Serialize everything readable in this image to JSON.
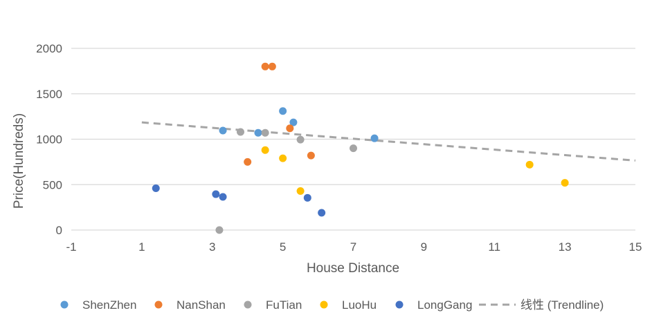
{
  "chart_data": {
    "type": "scatter",
    "title": "",
    "xlabel": "House Distance",
    "ylabel": "Price(Hundreds)",
    "xlim": [
      -1,
      15
    ],
    "ylim": [
      0,
      2000
    ],
    "xticks": [
      -1,
      1,
      3,
      5,
      7,
      9,
      11,
      13,
      15
    ],
    "yticks": [
      0,
      500,
      1000,
      1500,
      2000
    ],
    "grid": "horizontal",
    "legend_position": "bottom",
    "series": [
      {
        "name": "ShenZhen",
        "color": "#5b9bd5",
        "points": [
          [
            3.3,
            1095
          ],
          [
            4.3,
            1070
          ],
          [
            5.0,
            1310
          ],
          [
            5.3,
            1185
          ],
          [
            7.6,
            1010
          ]
        ]
      },
      {
        "name": "NanShan",
        "color": "#ed7d31",
        "points": [
          [
            4.5,
            1800
          ],
          [
            4.7,
            1800
          ],
          [
            4.0,
            750
          ],
          [
            5.2,
            1120
          ],
          [
            5.8,
            820
          ]
        ]
      },
      {
        "name": "FuTian",
        "color": "#a5a5a5",
        "points": [
          [
            3.8,
            1080
          ],
          [
            4.5,
            1070
          ],
          [
            5.5,
            995
          ],
          [
            7.0,
            900
          ],
          [
            3.2,
            0
          ]
        ]
      },
      {
        "name": "LuoHu",
        "color": "#ffc000",
        "points": [
          [
            4.5,
            880
          ],
          [
            5.0,
            790
          ],
          [
            5.5,
            430
          ],
          [
            12.0,
            720
          ],
          [
            13.0,
            520
          ]
        ]
      },
      {
        "name": "LongGang",
        "color": "#4472c4",
        "points": [
          [
            1.4,
            460
          ],
          [
            3.1,
            395
          ],
          [
            3.3,
            365
          ],
          [
            5.7,
            355
          ],
          [
            6.1,
            190
          ]
        ]
      }
    ],
    "trendline": {
      "name": "线性 (Trendline)",
      "color": "#a5a5a5",
      "x": [
        1,
        15
      ],
      "y": [
        1185,
        765
      ]
    }
  }
}
